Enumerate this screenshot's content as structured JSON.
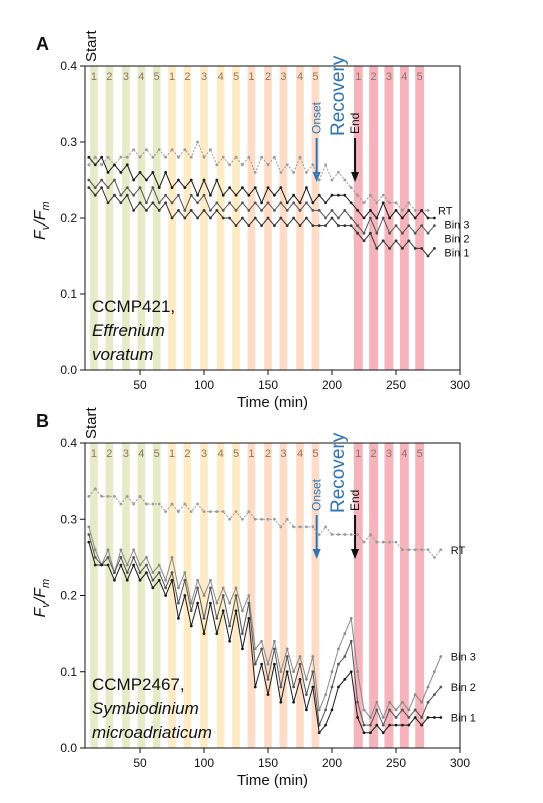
{
  "chart_data": [
    {
      "type": "line",
      "panel_label": "A",
      "start_label": "Start",
      "strain": "CCMP421,",
      "species": [
        "Effrenium",
        "voratum"
      ],
      "x_label": "Time (min)",
      "y_label_parts": [
        "F",
        "v",
        "/F",
        "m"
      ],
      "recovery_label": "Recovery",
      "markers": [
        {
          "label": "Onset",
          "x": 188,
          "color": "#2e75b6"
        },
        {
          "label": "End",
          "x": 218,
          "color": "#111111"
        }
      ],
      "bands": [
        {
          "start": 11,
          "end": 17,
          "label": "1",
          "color": "#e2e6bd"
        },
        {
          "start": 23,
          "end": 29,
          "label": "2",
          "color": "#e2e6bd"
        },
        {
          "start": 36,
          "end": 42,
          "label": "3",
          "color": "#e2e6bd"
        },
        {
          "start": 48,
          "end": 54,
          "label": "4",
          "color": "#e2e6bd"
        },
        {
          "start": 60,
          "end": 66,
          "label": "5",
          "color": "#e2e6bd"
        },
        {
          "start": 72,
          "end": 78,
          "label": "1",
          "color": "#fbe8bb"
        },
        {
          "start": 84,
          "end": 90,
          "label": "2",
          "color": "#fbe8bb"
        },
        {
          "start": 97,
          "end": 103,
          "label": "3",
          "color": "#fbe8bb"
        },
        {
          "start": 110,
          "end": 116,
          "label": "4",
          "color": "#fbe8bb"
        },
        {
          "start": 122,
          "end": 128,
          "label": "5",
          "color": "#fbe8bb"
        },
        {
          "start": 134,
          "end": 140,
          "label": "1",
          "color": "#fbd6bd"
        },
        {
          "start": 147,
          "end": 153,
          "label": "2",
          "color": "#fbd6bd"
        },
        {
          "start": 159,
          "end": 165,
          "label": "3",
          "color": "#fbd6bd"
        },
        {
          "start": 172,
          "end": 178,
          "label": "4",
          "color": "#fbd6bd"
        },
        {
          "start": 184,
          "end": 190,
          "label": "5",
          "color": "#fbd6bd"
        },
        {
          "start": 217,
          "end": 224,
          "label": "1",
          "color": "#f3a7b0"
        },
        {
          "start": 229,
          "end": 236,
          "label": "2",
          "color": "#f3a7b0"
        },
        {
          "start": 241,
          "end": 248,
          "label": "3",
          "color": "#f3a7b0"
        },
        {
          "start": 253,
          "end": 260,
          "label": "4",
          "color": "#f3a7b0"
        },
        {
          "start": 265,
          "end": 272,
          "label": "5",
          "color": "#f3a7b0"
        }
      ],
      "xlim": [
        7,
        300
      ],
      "ylim": [
        0,
        0.4
      ],
      "xticks": [
        50,
        100,
        150,
        200,
        250,
        300
      ],
      "yticks": [
        {
          "value": 0,
          "label": "0.0"
        },
        0.1,
        0.2,
        0.3,
        0.4
      ],
      "x": [
        10,
        15,
        20,
        25,
        30,
        35,
        40,
        45,
        50,
        55,
        60,
        65,
        70,
        75,
        80,
        85,
        90,
        95,
        100,
        105,
        110,
        115,
        120,
        125,
        130,
        135,
        140,
        145,
        150,
        155,
        160,
        165,
        170,
        175,
        180,
        185,
        190,
        195,
        200,
        205,
        210,
        215,
        220,
        225,
        230,
        235,
        240,
        245,
        250,
        255,
        260,
        265,
        270,
        275,
        280,
        285
      ],
      "series": [
        {
          "name": "RT",
          "color": "#9a9a9a",
          "values": [
            0.27,
            0.28,
            0.27,
            0.28,
            0.27,
            0.28,
            0.28,
            0.29,
            0.28,
            0.29,
            0.28,
            0.29,
            0.28,
            0.29,
            0.28,
            0.29,
            0.28,
            0.3,
            0.28,
            0.29,
            0.27,
            0.28,
            0.27,
            0.28,
            0.27,
            0.28,
            0.26,
            0.28,
            0.27,
            0.28,
            0.26,
            0.27,
            0.26,
            0.28,
            0.26,
            0.27,
            0.25,
            0.27,
            0.25,
            0.26,
            0.25,
            0.24,
            0.23,
            0.22,
            0.23,
            0.22,
            0.23,
            0.22,
            0.22,
            0.21,
            0.22,
            0.21,
            0.21,
            0.21,
            null,
            null
          ]
        },
        {
          "name": "Bin 3",
          "color": "#1a1a1a",
          "values": [
            0.28,
            0.27,
            0.28,
            0.26,
            0.27,
            0.26,
            0.27,
            0.25,
            0.26,
            0.25,
            0.26,
            0.24,
            0.26,
            0.24,
            0.25,
            0.24,
            0.25,
            0.23,
            0.25,
            0.23,
            0.25,
            0.23,
            0.24,
            0.23,
            0.24,
            0.23,
            0.24,
            0.22,
            0.24,
            0.23,
            0.24,
            0.22,
            0.23,
            0.22,
            0.24,
            0.22,
            0.23,
            0.22,
            0.23,
            0.23,
            0.23,
            0.22,
            0.21,
            0.2,
            0.21,
            0.2,
            0.22,
            0.2,
            0.21,
            0.2,
            0.21,
            0.2,
            0.21,
            0.2,
            0.2,
            null
          ]
        },
        {
          "name": "Bin 2",
          "color": "#555555",
          "values": [
            0.25,
            0.24,
            0.25,
            0.24,
            0.25,
            0.23,
            0.24,
            0.23,
            0.24,
            0.22,
            0.24,
            0.22,
            0.23,
            0.22,
            0.23,
            0.21,
            0.23,
            0.22,
            0.23,
            0.21,
            0.22,
            0.21,
            0.22,
            0.21,
            0.22,
            0.21,
            0.22,
            0.21,
            0.22,
            0.21,
            0.22,
            0.21,
            0.22,
            0.21,
            0.22,
            0.21,
            0.21,
            0.2,
            0.21,
            0.2,
            0.21,
            0.2,
            0.19,
            0.18,
            0.2,
            0.18,
            0.2,
            0.18,
            0.19,
            0.18,
            0.19,
            0.18,
            0.19,
            0.18,
            0.19,
            null
          ]
        },
        {
          "name": "Bin 1",
          "color": "#333333",
          "values": [
            0.24,
            0.23,
            0.24,
            0.22,
            0.23,
            0.22,
            0.23,
            0.21,
            0.22,
            0.21,
            0.22,
            0.21,
            0.22,
            0.2,
            0.21,
            0.2,
            0.21,
            0.2,
            0.21,
            0.2,
            0.21,
            0.2,
            0.2,
            0.19,
            0.2,
            0.19,
            0.2,
            0.19,
            0.2,
            0.19,
            0.2,
            0.19,
            0.2,
            0.19,
            0.2,
            0.19,
            0.19,
            0.19,
            0.2,
            0.19,
            0.19,
            0.19,
            0.18,
            0.17,
            0.18,
            0.16,
            0.17,
            0.16,
            0.17,
            0.16,
            0.17,
            0.16,
            0.16,
            0.15,
            0.16,
            null
          ]
        }
      ]
    },
    {
      "type": "line",
      "panel_label": "B",
      "start_label": "Start",
      "strain": "CCMP2467,",
      "species": [
        "Symbiodinium",
        "microadriaticum"
      ],
      "x_label": "Time (min)",
      "y_label_parts": [
        "F",
        "v",
        "/F",
        "m"
      ],
      "recovery_label": "Recovery",
      "markers": [
        {
          "label": "Onset",
          "x": 188,
          "color": "#2e75b6"
        },
        {
          "label": "End",
          "x": 218,
          "color": "#111111"
        }
      ],
      "bands": [
        {
          "start": 11,
          "end": 17,
          "label": "1",
          "color": "#e2e6bd"
        },
        {
          "start": 23,
          "end": 29,
          "label": "2",
          "color": "#e2e6bd"
        },
        {
          "start": 36,
          "end": 42,
          "label": "3",
          "color": "#e2e6bd"
        },
        {
          "start": 48,
          "end": 54,
          "label": "4",
          "color": "#e2e6bd"
        },
        {
          "start": 60,
          "end": 66,
          "label": "5",
          "color": "#e2e6bd"
        },
        {
          "start": 72,
          "end": 78,
          "label": "1",
          "color": "#fbe8bb"
        },
        {
          "start": 84,
          "end": 90,
          "label": "2",
          "color": "#fbe8bb"
        },
        {
          "start": 97,
          "end": 103,
          "label": "3",
          "color": "#fbe8bb"
        },
        {
          "start": 110,
          "end": 116,
          "label": "4",
          "color": "#fbe8bb"
        },
        {
          "start": 122,
          "end": 128,
          "label": "5",
          "color": "#fbe8bb"
        },
        {
          "start": 134,
          "end": 140,
          "label": "1",
          "color": "#fbd6bd"
        },
        {
          "start": 147,
          "end": 153,
          "label": "2",
          "color": "#fbd6bd"
        },
        {
          "start": 159,
          "end": 165,
          "label": "3",
          "color": "#fbd6bd"
        },
        {
          "start": 172,
          "end": 178,
          "label": "4",
          "color": "#fbd6bd"
        },
        {
          "start": 184,
          "end": 190,
          "label": "5",
          "color": "#fbd6bd"
        },
        {
          "start": 217,
          "end": 224,
          "label": "1",
          "color": "#f3a7b0"
        },
        {
          "start": 229,
          "end": 236,
          "label": "2",
          "color": "#f3a7b0"
        },
        {
          "start": 241,
          "end": 248,
          "label": "3",
          "color": "#f3a7b0"
        },
        {
          "start": 253,
          "end": 260,
          "label": "4",
          "color": "#f3a7b0"
        },
        {
          "start": 265,
          "end": 272,
          "label": "5",
          "color": "#f3a7b0"
        }
      ],
      "xlim": [
        7,
        300
      ],
      "ylim": [
        0,
        0.4
      ],
      "xticks": [
        50,
        100,
        150,
        200,
        250,
        300
      ],
      "yticks": [
        {
          "value": 0,
          "label": "0.0"
        },
        0.1,
        0.2,
        0.3,
        0.4
      ],
      "x": [
        10,
        15,
        20,
        25,
        30,
        35,
        40,
        45,
        50,
        55,
        60,
        65,
        70,
        75,
        80,
        85,
        90,
        95,
        100,
        105,
        110,
        115,
        120,
        125,
        130,
        135,
        140,
        145,
        150,
        155,
        160,
        165,
        170,
        175,
        180,
        185,
        190,
        195,
        200,
        205,
        210,
        215,
        220,
        225,
        230,
        235,
        240,
        245,
        250,
        255,
        260,
        265,
        270,
        275,
        280,
        285
      ],
      "series": [
        {
          "name": "RT",
          "color": "#9a9a9a",
          "values": [
            0.33,
            0.34,
            0.33,
            0.33,
            0.33,
            0.32,
            0.33,
            0.32,
            0.33,
            0.32,
            0.32,
            0.32,
            0.31,
            0.32,
            0.31,
            0.32,
            0.31,
            0.32,
            0.31,
            0.31,
            0.31,
            0.31,
            0.3,
            0.31,
            0.3,
            0.31,
            0.3,
            0.3,
            0.3,
            0.3,
            0.29,
            0.3,
            0.29,
            0.29,
            0.29,
            0.29,
            0.28,
            0.29,
            0.28,
            0.28,
            0.28,
            0.28,
            0.28,
            0.27,
            0.28,
            0.27,
            0.27,
            0.27,
            0.27,
            0.26,
            0.26,
            0.26,
            0.26,
            0.26,
            0.25,
            0.26
          ]
        },
        {
          "name": "Bin 3",
          "color": "#8a8a8a",
          "values": [
            0.29,
            0.26,
            0.24,
            0.26,
            0.23,
            0.26,
            0.24,
            0.26,
            0.24,
            0.25,
            0.23,
            0.24,
            0.22,
            0.25,
            0.21,
            0.23,
            0.19,
            0.22,
            0.2,
            0.22,
            0.19,
            0.21,
            0.19,
            0.21,
            0.18,
            0.2,
            0.13,
            0.14,
            0.11,
            0.14,
            0.1,
            0.13,
            0.1,
            0.12,
            0.09,
            0.12,
            0.05,
            0.07,
            0.1,
            0.13,
            0.15,
            0.17,
            0.1,
            0.05,
            0.04,
            0.06,
            0.04,
            0.06,
            0.05,
            0.06,
            0.05,
            0.07,
            0.06,
            0.08,
            0.1,
            0.12
          ]
        },
        {
          "name": "Bin 2",
          "color": "#555555",
          "values": [
            0.28,
            0.25,
            0.24,
            0.25,
            0.23,
            0.25,
            0.23,
            0.25,
            0.23,
            0.24,
            0.22,
            0.23,
            0.21,
            0.23,
            0.19,
            0.22,
            0.18,
            0.21,
            0.17,
            0.21,
            0.17,
            0.2,
            0.16,
            0.2,
            0.15,
            0.19,
            0.11,
            0.13,
            0.09,
            0.13,
            0.08,
            0.12,
            0.08,
            0.11,
            0.07,
            0.1,
            0.03,
            0.05,
            0.08,
            0.11,
            0.12,
            0.14,
            0.06,
            0.03,
            0.03,
            0.05,
            0.03,
            0.05,
            0.04,
            0.05,
            0.04,
            0.05,
            0.04,
            0.06,
            0.07,
            0.08
          ]
        },
        {
          "name": "Bin 1",
          "color": "#1a1a1a",
          "values": [
            0.27,
            0.24,
            0.24,
            0.24,
            0.22,
            0.24,
            0.22,
            0.24,
            0.22,
            0.23,
            0.21,
            0.22,
            0.2,
            0.22,
            0.17,
            0.2,
            0.16,
            0.19,
            0.15,
            0.19,
            0.15,
            0.18,
            0.14,
            0.18,
            0.13,
            0.17,
            0.08,
            0.11,
            0.07,
            0.11,
            0.06,
            0.1,
            0.06,
            0.09,
            0.05,
            0.08,
            0.02,
            0.03,
            0.05,
            0.08,
            0.09,
            0.1,
            0.04,
            0.02,
            0.02,
            0.03,
            0.02,
            0.03,
            0.03,
            0.03,
            0.03,
            0.04,
            0.03,
            0.04,
            0.04,
            0.04
          ]
        }
      ]
    }
  ]
}
